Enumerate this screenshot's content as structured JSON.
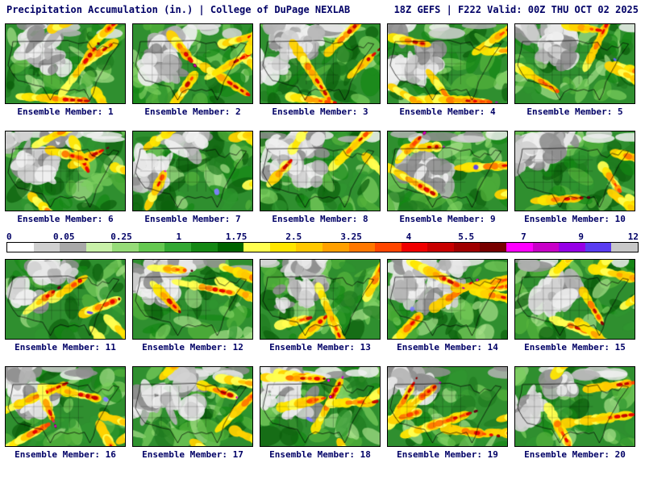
{
  "header": {
    "left": "Precipitation Accumulation (in.) | College of DuPage NEXLAB",
    "right": "18Z GEFS | F222 Valid: 00Z THU OCT 02 2025"
  },
  "members": [
    "Ensemble Member: 1",
    "Ensemble Member: 2",
    "Ensemble Member: 3",
    "Ensemble Member: 4",
    "Ensemble Member: 5",
    "Ensemble Member: 6",
    "Ensemble Member: 7",
    "Ensemble Member: 8",
    "Ensemble Member: 9",
    "Ensemble Member: 10",
    "Ensemble Member: 11",
    "Ensemble Member: 12",
    "Ensemble Member: 13",
    "Ensemble Member: 14",
    "Ensemble Member: 15",
    "Ensemble Member: 16",
    "Ensemble Member: 17",
    "Ensemble Member: 18",
    "Ensemble Member: 19",
    "Ensemble Member: 20"
  ],
  "colorbar": {
    "ticks": [
      "0",
      "0.05",
      "0.25",
      "1",
      "1.75",
      "2.5",
      "3.25",
      "4",
      "5.5",
      "7",
      "9",
      "12"
    ],
    "colors": [
      "#ffffff",
      "#d0d0d0",
      "#a8a8a8",
      "#c8f0a8",
      "#96dc78",
      "#64c850",
      "#32a832",
      "#148814",
      "#006400",
      "#ffff50",
      "#ffe600",
      "#ffc800",
      "#ffa000",
      "#ff7800",
      "#ff4600",
      "#f00000",
      "#c80000",
      "#a00000",
      "#780000",
      "#ff00ff",
      "#c800c8",
      "#9600e6",
      "#5a3cf0",
      "#c8c8c8"
    ]
  },
  "palette": {
    "base": "#2f8f2f",
    "greens": [
      "#56b43c",
      "#2f962f",
      "#1f7a1f",
      "#0b5e0b",
      "#7ccf5e",
      "#a8e08a",
      "#148814"
    ],
    "grays": [
      "#f0f0f0",
      "#d2d2d2",
      "#b4b4b4",
      "#8f8f8f",
      "#e8e8e8"
    ],
    "yellows": [
      "#ffff50",
      "#ffe600",
      "#ffd200"
    ],
    "oranges": [
      "#ffa000",
      "#ff7800",
      "#ffc800"
    ],
    "reds": [
      "#ff4600",
      "#e60000",
      "#c00000"
    ],
    "maroons": [
      "#8c0000",
      "#640014"
    ],
    "magentas": [
      "#ff00ff",
      "#c800c8"
    ],
    "blues": [
      "#5a3cf0",
      "#6464ff",
      "#8080ff"
    ]
  },
  "text_color": "#000066"
}
